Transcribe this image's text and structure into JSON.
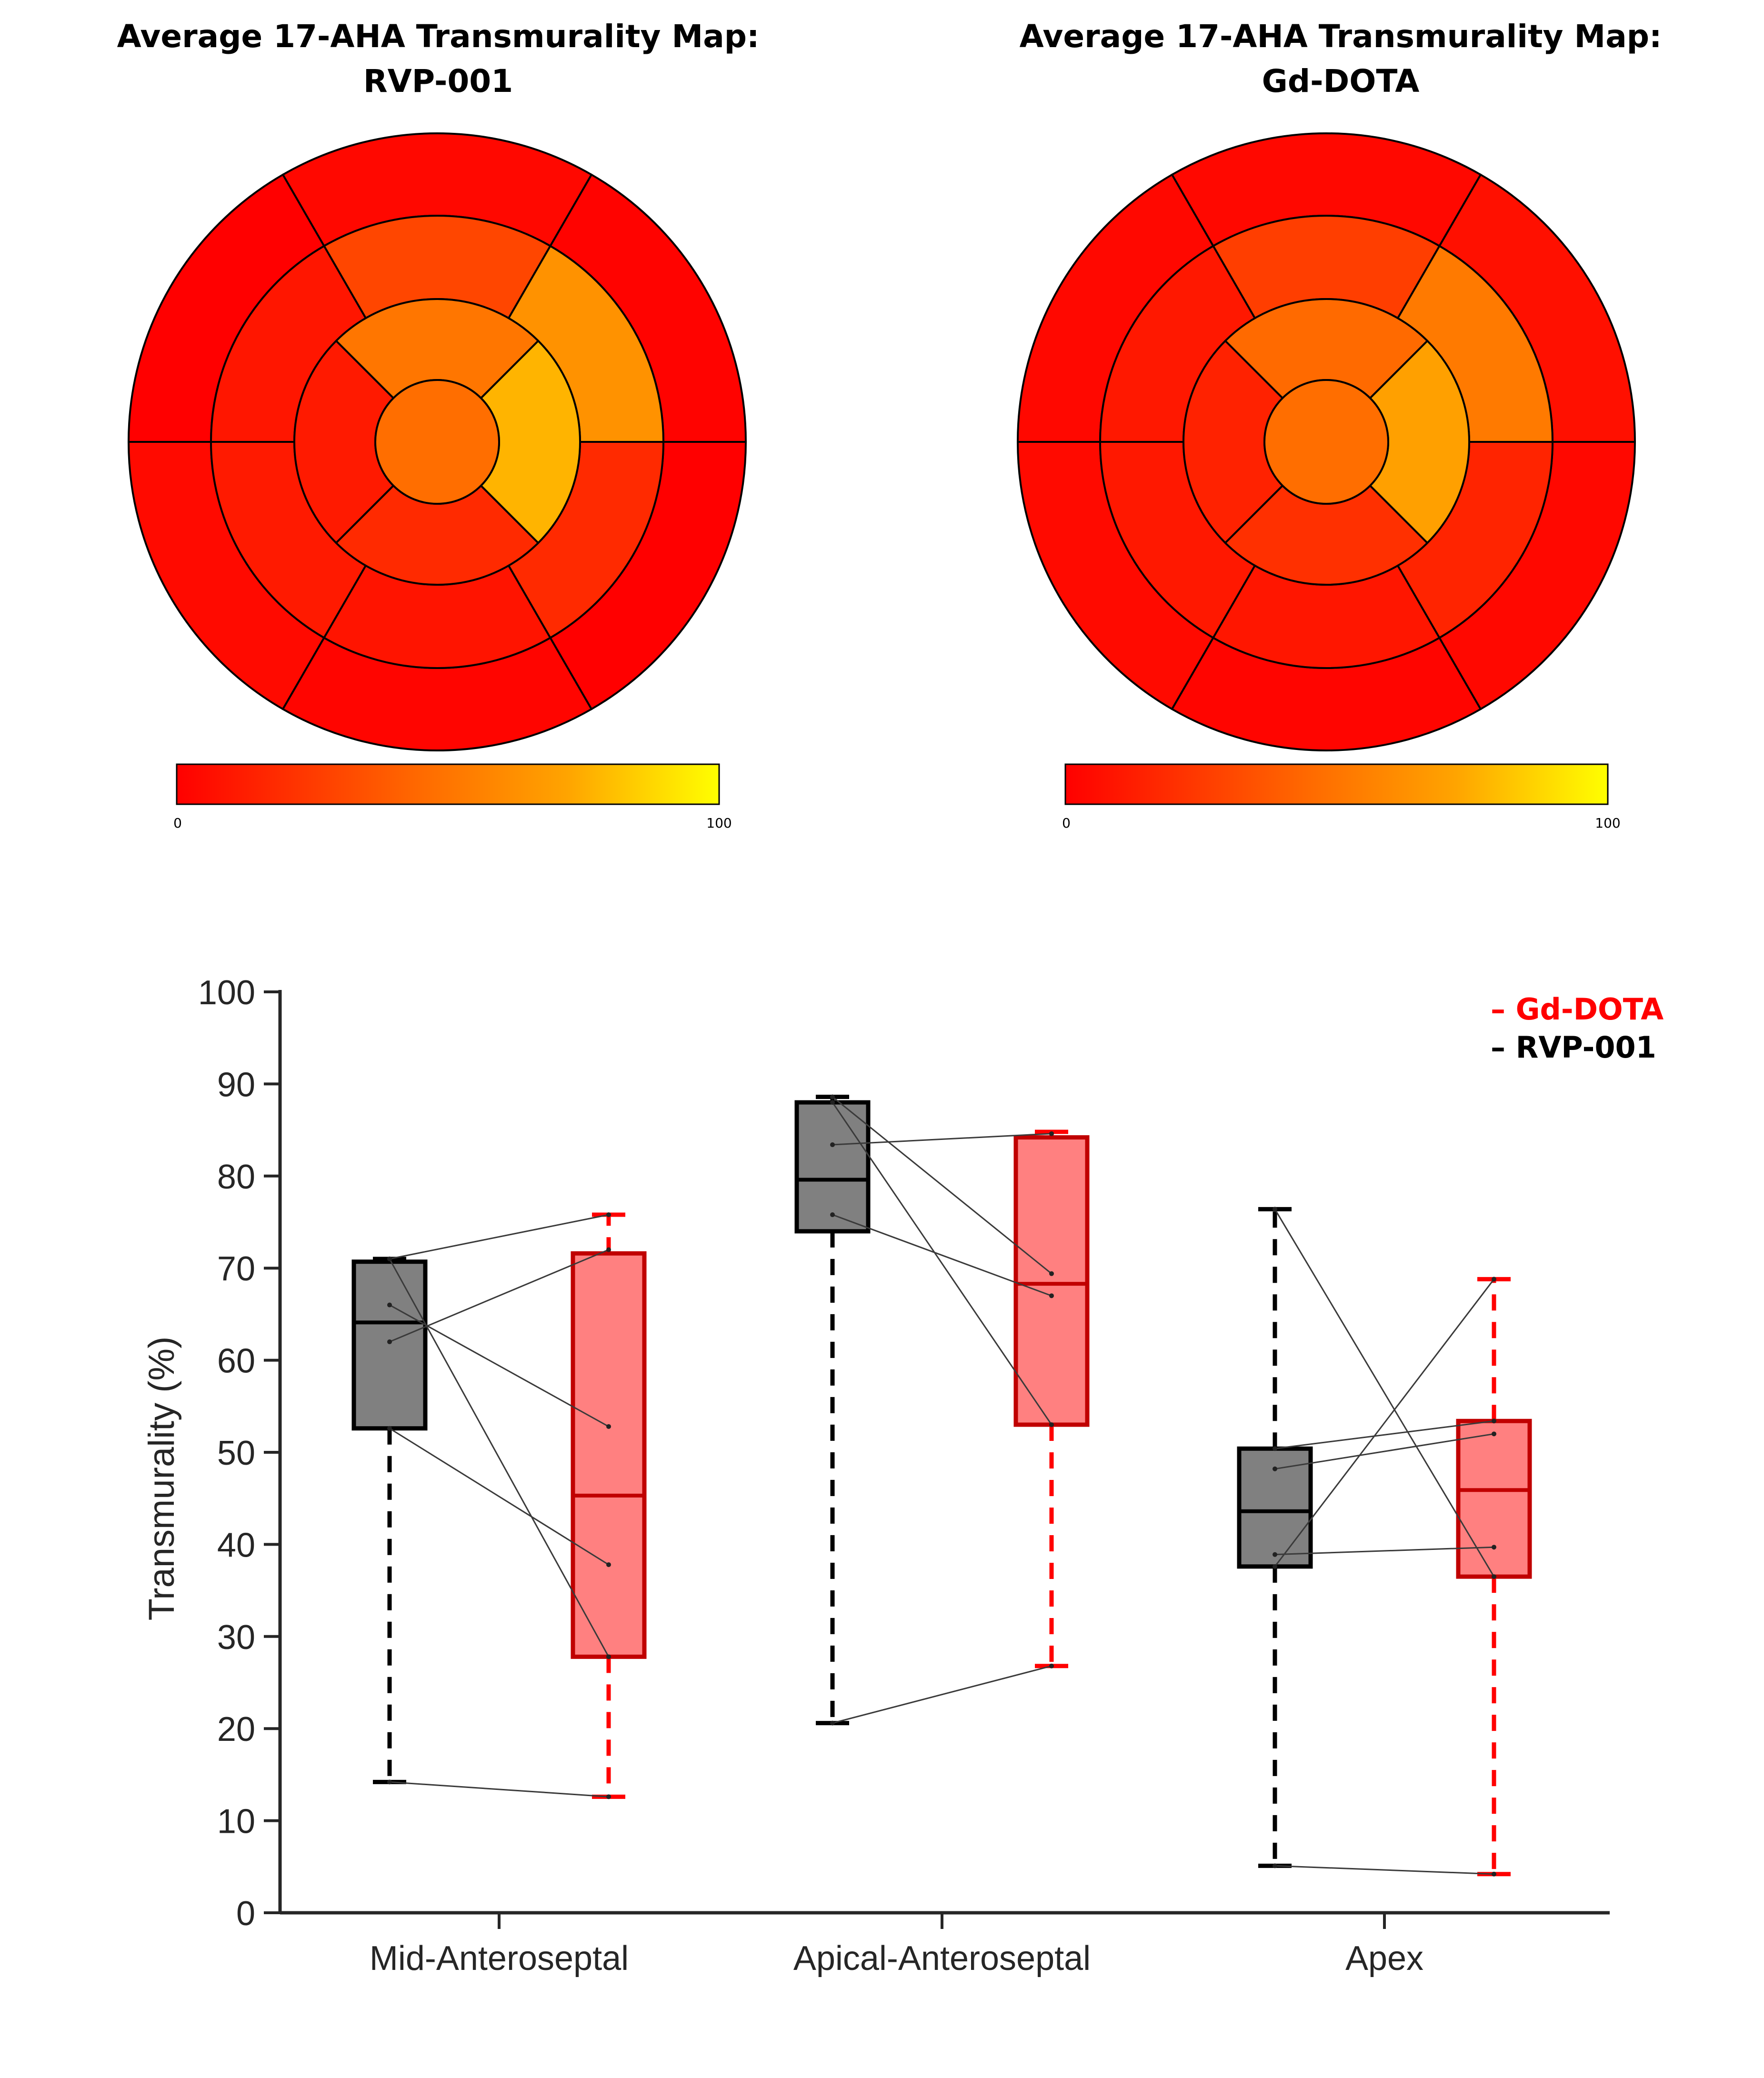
{
  "bullseye_maps": [
    {
      "title_line1": "Average 17-AHA Transmurality Map:",
      "title_line2": "RVP-001",
      "colorbar": {
        "min_label": "0",
        "max_label": "100"
      },
      "segment_colors": {
        "basal": [
          "#ff0800",
          "#ff0000",
          "#ff0a00",
          "#ff0500",
          "#ff0000",
          "#ff0300"
        ],
        "mid": [
          "#ff4600",
          "#ff1600",
          "#ff1a00",
          "#ff1400",
          "#ff2a00",
          "#ff9200"
        ],
        "apical": [
          "#ff7600",
          "#ff1a00",
          "#ff2a00",
          "#ffb400"
        ],
        "apex": "#ff6e00"
      }
    },
    {
      "title_line1": "Average 17-AHA Transmurality Map:",
      "title_line2": "Gd-DOTA",
      "colorbar": {
        "min_label": "0",
        "max_label": "100"
      },
      "segment_colors": {
        "basal": [
          "#ff0800",
          "#ff0800",
          "#ff0a00",
          "#ff0500",
          "#ff0800",
          "#ff1000"
        ],
        "mid": [
          "#ff3e00",
          "#ff1800",
          "#ff1800",
          "#ff1600",
          "#ff2400",
          "#ff7a00"
        ],
        "apical": [
          "#ff6a00",
          "#ff2200",
          "#ff3000",
          "#ffa000"
        ],
        "apex": "#ff6e00"
      }
    }
  ],
  "colorbar_colors": [
    "#ff0000",
    "#ff6a00",
    "#ffa400",
    "#ffff00"
  ],
  "chart_data": {
    "type": "box",
    "ylabel": "Transmurality (%)",
    "ylim": [
      0,
      100
    ],
    "yticks": [
      0,
      10,
      20,
      30,
      40,
      50,
      60,
      70,
      80,
      90,
      100
    ],
    "categories": [
      "Mid-Anteroseptal",
      "Apical-Anteroseptal",
      "Apex"
    ],
    "legend": {
      "position": "top-right",
      "entries": [
        {
          "label": "– Gd-DOTA",
          "color": "#ff0000"
        },
        {
          "label": "– RVP-001",
          "color": "#000000"
        }
      ]
    },
    "series": [
      {
        "name": "RVP-001",
        "fill": "#808080",
        "edge": "#000000",
        "boxes": [
          {
            "whisker_low": 14.2,
            "q1": 52.6,
            "median": 64.1,
            "q3": 70.7,
            "whisker_high": 71.0
          },
          {
            "whisker_low": 20.6,
            "q1": 74.0,
            "median": 79.6,
            "q3": 88.0,
            "whisker_high": 88.6
          },
          {
            "whisker_low": 5.1,
            "q1": 37.6,
            "median": 43.6,
            "q3": 50.4,
            "whisker_high": 76.4
          }
        ]
      },
      {
        "name": "Gd-DOTA",
        "fill": "#ff8080",
        "edge": "#c00000",
        "whisker_color": "#ff0000",
        "boxes": [
          {
            "whisker_low": 12.6,
            "q1": 27.8,
            "median": 45.3,
            "q3": 71.6,
            "whisker_high": 75.8
          },
          {
            "whisker_low": 26.8,
            "q1": 53.0,
            "median": 68.3,
            "q3": 84.2,
            "whisker_high": 84.8
          },
          {
            "whisker_low": 4.2,
            "q1": 36.5,
            "median": 45.9,
            "q3": 53.4,
            "whisker_high": 68.8
          }
        ]
      }
    ],
    "paired_points": [
      {
        "category": 0,
        "pairs": [
          [
            71.0,
            75.8
          ],
          [
            66.0,
            52.8
          ],
          [
            62.0,
            72.0
          ],
          [
            52.6,
            37.8
          ],
          [
            71.0,
            27.8
          ],
          [
            14.2,
            12.6
          ]
        ]
      },
      {
        "category": 1,
        "pairs": [
          [
            83.4,
            84.6
          ],
          [
            88.6,
            69.4
          ],
          [
            75.8,
            67.0
          ],
          [
            88.0,
            53.0
          ],
          [
            20.6,
            26.8
          ]
        ]
      },
      {
        "category": 2,
        "pairs": [
          [
            48.2,
            52.0
          ],
          [
            50.4,
            53.4
          ],
          [
            38.9,
            39.7
          ],
          [
            37.6,
            68.8
          ],
          [
            76.4,
            36.5
          ],
          [
            5.1,
            4.2
          ]
        ]
      }
    ]
  }
}
